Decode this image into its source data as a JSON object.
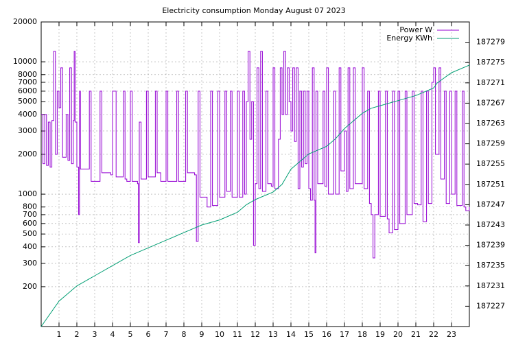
{
  "chart_data": {
    "type": "line",
    "title": "Electricity consumption Monday August 07 2023",
    "xlim": [
      0,
      24
    ],
    "xticks": [
      1,
      2,
      3,
      4,
      5,
      6,
      7,
      8,
      9,
      10,
      11,
      12,
      13,
      14,
      15,
      16,
      17,
      18,
      19,
      20,
      21,
      22,
      23
    ],
    "ylim": [
      100,
      20000
    ],
    "yticks": [
      200,
      300,
      400,
      500,
      600,
      700,
      800,
      1000,
      2000,
      3000,
      4000,
      5000,
      6000,
      7000,
      8000,
      10000,
      20000
    ],
    "ylog": true,
    "y2lim": [
      187223,
      187283
    ],
    "y2ticks": [
      187227,
      187231,
      187235,
      187239,
      187243,
      187247,
      187251,
      187255,
      187259,
      187263,
      187267,
      187271,
      187275,
      187279
    ],
    "grid": true,
    "legend": "top-right",
    "series": [
      {
        "name": "Power W",
        "color": "#9400d3",
        "step": true,
        "x": [
          0,
          0.1,
          0.2,
          0.3,
          0.4,
          0.5,
          0.6,
          0.7,
          0.8,
          0.9,
          1.0,
          1.1,
          1.2,
          1.4,
          1.5,
          1.6,
          1.7,
          1.8,
          1.85,
          1.9,
          2.0,
          2.1,
          2.15,
          2.2,
          2.6,
          2.7,
          2.8,
          3.2,
          3.3,
          3.4,
          3.9,
          4.0,
          4.2,
          4.6,
          4.7,
          4.8,
          5.0,
          5.1,
          5.4,
          5.45,
          5.5,
          5.6,
          5.9,
          6.0,
          6.4,
          6.5,
          6.7,
          7.0,
          7.1,
          7.6,
          7.7,
          8.0,
          8.1,
          8.2,
          8.6,
          8.7,
          8.8,
          8.9,
          9.3,
          9.5,
          9.6,
          9.9,
          10.0,
          10.3,
          10.4,
          10.6,
          10.7,
          11.0,
          11.1,
          11.3,
          11.4,
          11.5,
          11.6,
          11.7,
          11.8,
          11.9,
          12.0,
          12.1,
          12.2,
          12.3,
          12.4,
          12.6,
          12.7,
          12.9,
          13.0,
          13.1,
          13.3,
          13.4,
          13.5,
          13.6,
          13.7,
          13.8,
          13.9,
          14.0,
          14.1,
          14.2,
          14.3,
          14.4,
          14.5,
          14.6,
          14.7,
          14.8,
          14.9,
          15.0,
          15.1,
          15.2,
          15.3,
          15.35,
          15.4,
          15.5,
          15.8,
          15.9,
          16.0,
          16.1,
          16.3,
          16.4,
          16.5,
          16.7,
          16.8,
          17.0,
          17.1,
          17.2,
          17.3,
          17.5,
          17.6,
          18.0,
          18.1,
          18.3,
          18.4,
          18.5,
          18.6,
          18.7,
          18.9,
          19.0,
          19.3,
          19.4,
          19.5,
          19.7,
          19.8,
          20.0,
          20.1,
          20.4,
          20.5,
          20.8,
          20.9,
          21.1,
          21.3,
          21.4,
          21.6,
          21.7,
          21.9,
          22.0,
          22.1,
          22.3,
          22.4,
          22.6,
          22.7,
          22.9,
          23.0,
          23.2,
          23.3,
          23.6,
          23.7,
          23.8,
          24.0
        ],
        "values": [
          4000,
          1700,
          4000,
          1650,
          3500,
          1600,
          3600,
          12000,
          2000,
          6000,
          4500,
          9000,
          1900,
          4000,
          1800,
          9000,
          1700,
          3600,
          12000,
          3500,
          1600,
          700,
          6000,
          1550,
          1550,
          6000,
          1250,
          1250,
          6000,
          1450,
          1400,
          6000,
          1350,
          6000,
          1300,
          1250,
          6000,
          1250,
          1200,
          430,
          3500,
          1300,
          6000,
          1350,
          6000,
          1450,
          1250,
          6000,
          1250,
          6000,
          1250,
          1250,
          6000,
          1450,
          1400,
          440,
          6000,
          950,
          800,
          6000,
          820,
          6000,
          950,
          6000,
          1050,
          6000,
          950,
          6000,
          950,
          6000,
          1000,
          5000,
          12000,
          2600,
          5000,
          410,
          1200,
          9000,
          1100,
          12000,
          1050,
          6000,
          1200,
          1150,
          9000,
          1100,
          2600,
          9000,
          4000,
          12000,
          4000,
          9000,
          5000,
          3000,
          9000,
          2500,
          9000,
          1100,
          6000,
          1600,
          6000,
          1700,
          6000,
          1100,
          900,
          9000,
          900,
          360,
          6000,
          1200,
          6000,
          1150,
          9000,
          1000,
          1000,
          6000,
          1000,
          9000,
          1500,
          3000,
          1050,
          9000,
          1100,
          9000,
          1200,
          9000,
          1100,
          6000,
          850,
          700,
          330,
          700,
          6000,
          680,
          6000,
          650,
          510,
          6000,
          540,
          6000,
          600,
          6000,
          700,
          6000,
          850,
          830,
          6000,
          620,
          6000,
          850,
          7000,
          9000,
          2000,
          9000,
          1300,
          6000,
          850,
          6000,
          1000,
          6000,
          820,
          6000,
          800,
          750,
          800
        ]
      },
      {
        "name": "Energy KWh",
        "color": "#009e73",
        "axis": "y2",
        "x": [
          0,
          1,
          2,
          3,
          4,
          5,
          6,
          7,
          8,
          9,
          10,
          11,
          11.5,
          12,
          13,
          13.5,
          14,
          14.5,
          15,
          16,
          16.5,
          17,
          18,
          18.5,
          19,
          20,
          21,
          22,
          22.2,
          23,
          24
        ],
        "values": [
          187223,
          187228,
          187231,
          187233,
          187235,
          187237,
          187238.5,
          187240,
          187241.5,
          187243,
          187244,
          187245.5,
          187247,
          187248,
          187249.5,
          187251,
          187254,
          187255.5,
          187257,
          187258.5,
          187260,
          187262,
          187265,
          187266,
          187266.5,
          187267.5,
          187268.5,
          187270,
          187271,
          187273,
          187274.5
        ]
      }
    ]
  }
}
